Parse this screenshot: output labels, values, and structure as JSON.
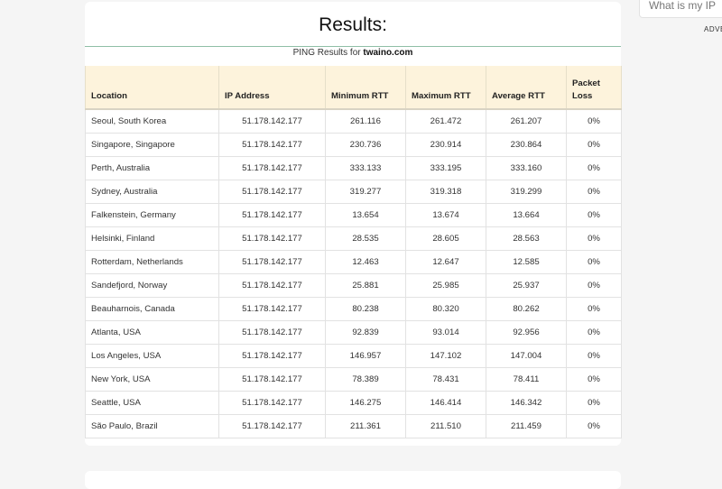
{
  "results": {
    "title": "Results:",
    "subtitle_prefix": "PING Results for",
    "domain": "twaino.com"
  },
  "table": {
    "headers": {
      "location": "Location",
      "ip": "IP Address",
      "min": "Minimum RTT",
      "max": "Maximum RTT",
      "avg": "Average RTT",
      "loss": "Packet Loss"
    },
    "rows": [
      {
        "location": "Seoul, South Korea",
        "ip": "51.178.142.177",
        "min": "261.116",
        "max": "261.472",
        "avg": "261.207",
        "loss": "0%"
      },
      {
        "location": "Singapore, Singapore",
        "ip": "51.178.142.177",
        "min": "230.736",
        "max": "230.914",
        "avg": "230.864",
        "loss": "0%"
      },
      {
        "location": "Perth, Australia",
        "ip": "51.178.142.177",
        "min": "333.133",
        "max": "333.195",
        "avg": "333.160",
        "loss": "0%"
      },
      {
        "location": "Sydney, Australia",
        "ip": "51.178.142.177",
        "min": "319.277",
        "max": "319.318",
        "avg": "319.299",
        "loss": "0%"
      },
      {
        "location": "Falkenstein, Germany",
        "ip": "51.178.142.177",
        "min": "13.654",
        "max": "13.674",
        "avg": "13.664",
        "loss": "0%"
      },
      {
        "location": "Helsinki, Finland",
        "ip": "51.178.142.177",
        "min": "28.535",
        "max": "28.605",
        "avg": "28.563",
        "loss": "0%"
      },
      {
        "location": "Rotterdam, Netherlands",
        "ip": "51.178.142.177",
        "min": "12.463",
        "max": "12.647",
        "avg": "12.585",
        "loss": "0%"
      },
      {
        "location": "Sandefjord, Norway",
        "ip": "51.178.142.177",
        "min": "25.881",
        "max": "25.985",
        "avg": "25.937",
        "loss": "0%"
      },
      {
        "location": "Beauharnois, Canada",
        "ip": "51.178.142.177",
        "min": "80.238",
        "max": "80.320",
        "avg": "80.262",
        "loss": "0%"
      },
      {
        "location": "Atlanta, USA",
        "ip": "51.178.142.177",
        "min": "92.839",
        "max": "93.014",
        "avg": "92.956",
        "loss": "0%"
      },
      {
        "location": "Los Angeles, USA",
        "ip": "51.178.142.177",
        "min": "146.957",
        "max": "147.102",
        "avg": "147.004",
        "loss": "0%"
      },
      {
        "location": "New York, USA",
        "ip": "51.178.142.177",
        "min": "78.389",
        "max": "78.431",
        "avg": "78.411",
        "loss": "0%"
      },
      {
        "location": "Seattle, USA",
        "ip": "51.178.142.177",
        "min": "146.275",
        "max": "146.414",
        "avg": "146.342",
        "loss": "0%"
      },
      {
        "location": "São Paulo, Brazil",
        "ip": "51.178.142.177",
        "min": "211.361",
        "max": "211.510",
        "avg": "211.459",
        "loss": "0%"
      }
    ]
  },
  "sidebar": {
    "search_text": "What is my IP",
    "ad_label": "ADVE"
  },
  "colors": {
    "header_bg": "#fdf3dc",
    "title_rule": "#8fbfa6",
    "page_bg": "#f5f5f5"
  }
}
